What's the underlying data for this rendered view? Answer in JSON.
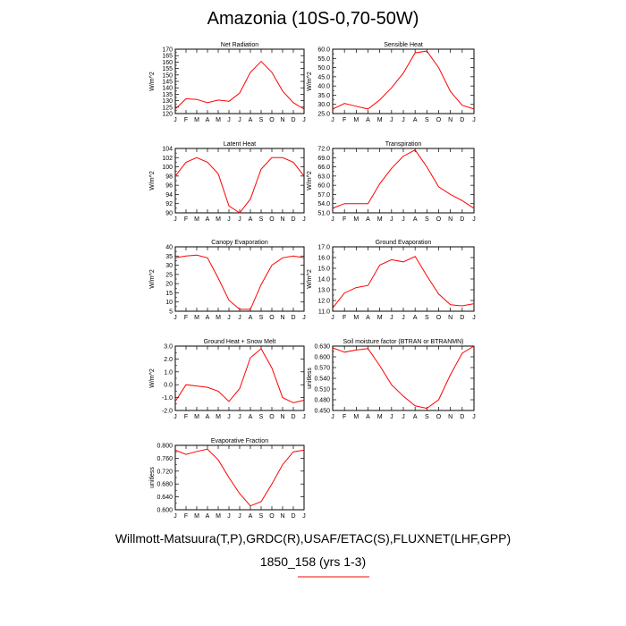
{
  "title": "Amazonia (10S-0,70-50W)",
  "footer": {
    "line1": "Willmott-Matsuura(T,P),GRDC(R),USAF/ETAC(S),FLUXNET(LHF,GPP)",
    "line2": "1850_158 (yrs 1-3)"
  },
  "colors": {
    "series": "#ff0000",
    "legend_dash": "#3b3bcc",
    "legend_line": "#ff0000",
    "axis": "#000000"
  },
  "chart_data": [
    {
      "type": "line",
      "title": "Net Radiation",
      "ylabel": "W/m^2",
      "categories": [
        "J",
        "F",
        "M",
        "A",
        "M",
        "J",
        "J",
        "A",
        "S",
        "O",
        "N",
        "D",
        "J"
      ],
      "ylim": [
        120,
        170
      ],
      "yticks": [
        "120",
        "125",
        "130",
        "135",
        "140",
        "145",
        "150",
        "155",
        "160",
        "165",
        "170"
      ],
      "values": [
        123.5,
        131.5,
        131,
        128.5,
        130.5,
        129.5,
        136,
        152,
        160.5,
        152,
        137.5,
        128.5,
        123.5
      ]
    },
    {
      "type": "line",
      "title": "Sensible Heat",
      "ylabel": "W/m^2",
      "categories": [
        "J",
        "F",
        "M",
        "A",
        "M",
        "J",
        "J",
        "A",
        "S",
        "O",
        "N",
        "D",
        "J"
      ],
      "ylim": [
        25,
        60
      ],
      "yticks": [
        "25.0",
        "30.0",
        "35.0",
        "40.0",
        "45.0",
        "50.0",
        "55.0",
        "60.0"
      ],
      "values": [
        27.5,
        30.5,
        29,
        27.5,
        32.5,
        39,
        47,
        58,
        59,
        50,
        37,
        29.5,
        27.5
      ]
    },
    {
      "type": "line",
      "title": "Latent Heat",
      "ylabel": "W/m^2",
      "categories": [
        "J",
        "F",
        "M",
        "A",
        "M",
        "J",
        "J",
        "A",
        "S",
        "O",
        "N",
        "D",
        "J"
      ],
      "ylim": [
        90,
        104
      ],
      "yticks": [
        "90",
        "92",
        "94",
        "96",
        "98",
        "100",
        "102",
        "104"
      ],
      "values": [
        98,
        101,
        102,
        101,
        98.5,
        91.5,
        90,
        93,
        99.5,
        102,
        102,
        101,
        98
      ]
    },
    {
      "type": "line",
      "title": "Transpiration",
      "ylabel": "W/m^2",
      "categories": [
        "J",
        "F",
        "M",
        "A",
        "M",
        "J",
        "J",
        "A",
        "S",
        "O",
        "N",
        "D",
        "J"
      ],
      "ylim": [
        51,
        72
      ],
      "yticks": [
        "51.0",
        "54.0",
        "57.0",
        "60.0",
        "63.0",
        "66.0",
        "69.0",
        "72.0"
      ],
      "values": [
        52.5,
        54,
        54,
        54,
        60.5,
        65.5,
        69.5,
        71.5,
        66,
        59.5,
        57,
        55,
        52.5
      ]
    },
    {
      "type": "line",
      "title": "Canopy Evaporation",
      "ylabel": "W/m^2",
      "categories": [
        "J",
        "F",
        "M",
        "A",
        "M",
        "J",
        "J",
        "A",
        "S",
        "O",
        "N",
        "D",
        "J"
      ],
      "ylim": [
        5,
        40
      ],
      "yticks": [
        "5",
        "10",
        "15",
        "20",
        "25",
        "30",
        "35",
        "40"
      ],
      "values": [
        34,
        35,
        35.5,
        34,
        23,
        11,
        6,
        6,
        19.5,
        30,
        34,
        35,
        34
      ]
    },
    {
      "type": "line",
      "title": "Ground Evaporation",
      "ylabel": "W/m^2",
      "categories": [
        "J",
        "F",
        "M",
        "A",
        "M",
        "J",
        "J",
        "A",
        "S",
        "O",
        "N",
        "D",
        "J"
      ],
      "ylim": [
        11,
        17
      ],
      "yticks": [
        "11.0",
        "12.0",
        "13.0",
        "14.0",
        "15.0",
        "16.0",
        "17.0"
      ],
      "values": [
        11.3,
        12.7,
        13.2,
        13.4,
        15.3,
        15.8,
        15.6,
        16.1,
        14.3,
        12.6,
        11.6,
        11.5,
        11.7
      ]
    },
    {
      "type": "line",
      "title": "Ground Heat + Snow Melt",
      "ylabel": "W/m^2",
      "categories": [
        "J",
        "F",
        "M",
        "A",
        "M",
        "J",
        "J",
        "A",
        "S",
        "O",
        "N",
        "D",
        "J"
      ],
      "ylim": [
        -2,
        3
      ],
      "yticks": [
        "-2.0",
        "-1.0",
        "0.0",
        "1.0",
        "2.0",
        "3.0"
      ],
      "values": [
        -1.3,
        0,
        -0.1,
        -0.2,
        -0.5,
        -1.3,
        -0.3,
        2.1,
        2.8,
        1.3,
        -1.0,
        -1.4,
        -1.2
      ]
    },
    {
      "type": "line",
      "title": "Soil moisture factor (BTRAN or BTRANMN)",
      "ylabel": "unitless",
      "categories": [
        "J",
        "F",
        "M",
        "A",
        "M",
        "J",
        "J",
        "A",
        "S",
        "O",
        "N",
        "D",
        "J"
      ],
      "ylim": [
        0.45,
        0.63
      ],
      "yticks": [
        "0.450",
        "0.480",
        "0.510",
        "0.540",
        "0.570",
        "0.600",
        "0.630"
      ],
      "values": [
        0.625,
        0.613,
        0.619,
        0.623,
        0.575,
        0.522,
        0.49,
        0.463,
        0.456,
        0.48,
        0.55,
        0.61,
        0.63
      ]
    },
    {
      "type": "line",
      "title": "Evaporative Fraction",
      "ylabel": "unitless",
      "categories": [
        "J",
        "F",
        "M",
        "A",
        "M",
        "J",
        "J",
        "A",
        "S",
        "O",
        "N",
        "D",
        "J"
      ],
      "ylim": [
        0.6,
        0.8
      ],
      "yticks": [
        "0.600",
        "0.640",
        "0.680",
        "0.720",
        "0.760",
        "0.800"
      ],
      "values": [
        0.785,
        0.772,
        0.781,
        0.788,
        0.755,
        0.7,
        0.65,
        0.612,
        0.625,
        0.68,
        0.74,
        0.78,
        0.785
      ]
    }
  ]
}
